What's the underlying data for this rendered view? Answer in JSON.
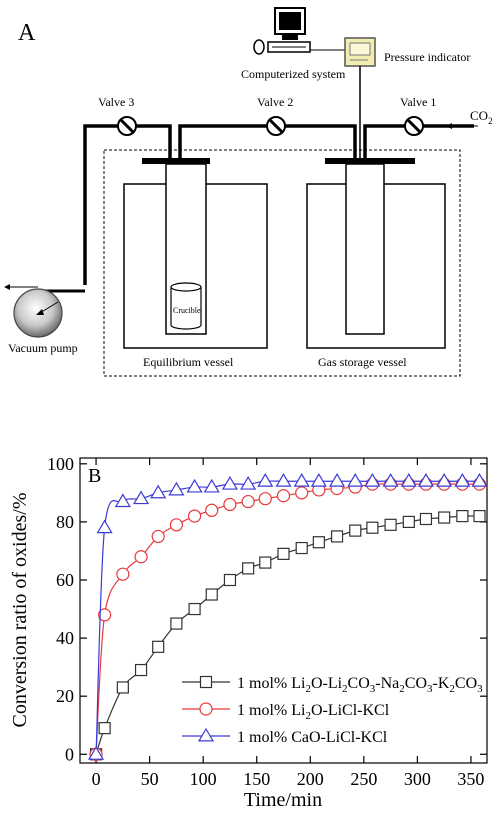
{
  "panel_a": {
    "label": "A",
    "computer_label": "Computerized system",
    "pressure_label": "Pressure indicator",
    "valves": [
      "Valve 3",
      "Valve 2",
      "Valve 1"
    ],
    "gas_label_main": "CO",
    "gas_label_sub": "2",
    "vacuum_label": "Vacuum pump",
    "crucible_label": "Crucible",
    "vessel_left_label": "Equilibrium vessel",
    "vessel_right_label": "Gas storage vessel"
  },
  "chart_data": {
    "type": "line",
    "panel_label": "B",
    "xlabel": "Time/min",
    "ylabel": "Conversion ratio of oxides/%",
    "xlim": [
      -15,
      365
    ],
    "ylim": [
      -3,
      102
    ],
    "xticks": [
      0,
      50,
      100,
      150,
      200,
      250,
      300,
      350
    ],
    "yticks": [
      0,
      20,
      40,
      60,
      80,
      100
    ],
    "legend_position": "lower-right",
    "series": [
      {
        "legend_parts": [
          {
            "t": "1 mol% Li",
            "s": "n"
          },
          {
            "t": "2",
            "s": "sub"
          },
          {
            "t": "O-Li",
            "s": "n"
          },
          {
            "t": "2",
            "s": "sub"
          },
          {
            "t": "CO",
            "s": "n"
          },
          {
            "t": "3",
            "s": "sub"
          },
          {
            "t": "-Na",
            "s": "n"
          },
          {
            "t": "2",
            "s": "sub"
          },
          {
            "t": "CO",
            "s": "n"
          },
          {
            "t": "3",
            "s": "sub"
          },
          {
            "t": "-K",
            "s": "n"
          },
          {
            "t": "2",
            "s": "sub"
          },
          {
            "t": "CO",
            "s": "n"
          },
          {
            "t": "3",
            "s": "sub"
          }
        ],
        "marker": "square",
        "color": "#333333",
        "x": [
          0,
          8,
          25,
          42,
          58,
          75,
          92,
          108,
          125,
          142,
          158,
          175,
          192,
          208,
          225,
          242,
          258,
          275,
          292,
          308,
          325,
          342,
          358
        ],
        "y": [
          0,
          9,
          23,
          29,
          37,
          45,
          50,
          55,
          60,
          64,
          66,
          69,
          71,
          73,
          75,
          77,
          78,
          79,
          80,
          81,
          81.5,
          82,
          82
        ]
      },
      {
        "legend_parts": [
          {
            "t": "1 mol% Li",
            "s": "n"
          },
          {
            "t": "2",
            "s": "sub"
          },
          {
            "t": "O-LiCl-KCl",
            "s": "n"
          }
        ],
        "marker": "circle",
        "color": "#e8393a",
        "x": [
          0,
          8,
          25,
          42,
          58,
          75,
          92,
          108,
          125,
          142,
          158,
          175,
          192,
          208,
          225,
          242,
          258,
          275,
          292,
          308,
          325,
          342,
          358
        ],
        "y": [
          0,
          48,
          62,
          68,
          75,
          79,
          82,
          84,
          86,
          87,
          88,
          89,
          90,
          91,
          91.5,
          92,
          93,
          93,
          93,
          93,
          93,
          93,
          93
        ]
      },
      {
        "legend_parts": [
          {
            "t": "1 mol% CaO-LiCl-KCl",
            "s": "n"
          }
        ],
        "marker": "triangle",
        "color": "#3b3bd6",
        "x": [
          0,
          8,
          25,
          42,
          58,
          75,
          92,
          108,
          125,
          142,
          158,
          175,
          192,
          208,
          225,
          242,
          258,
          275,
          292,
          308,
          325,
          342,
          358
        ],
        "y": [
          0,
          78,
          87,
          88,
          90,
          91,
          92,
          92,
          93,
          93,
          94,
          94,
          94,
          94,
          94,
          94,
          94,
          94,
          94,
          94,
          94,
          94,
          94
        ]
      }
    ]
  }
}
